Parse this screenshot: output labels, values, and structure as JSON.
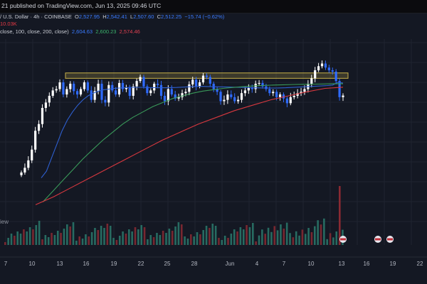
{
  "header": {
    "published": "21 published on TradingView.com, Jun 13, 2025 09:46 UTC"
  },
  "legend": {
    "title": "/ U.S. Dollar · 4h · COINBASE",
    "ohlc_prefix": "O",
    "open": "2,527.95",
    "high_prefix": "H",
    "high": "2,542.41",
    "low_prefix": "L",
    "low": "2,507.60",
    "close_prefix": "C",
    "close": "2,512.25",
    "change": "−15.74 (−0.62%)",
    "volume": "10.03K",
    "ma_line": "close, 100, close, 200, close)",
    "ma_values": [
      "2,604.63",
      "2,600.23",
      "2,574.46"
    ]
  },
  "watermark": "iew",
  "colors": {
    "background": "#141823",
    "candle_up": "#ffffff",
    "candle_down": "#2f6bff",
    "ma_short": "#2e5fcf",
    "ma_mid": "#3a9a5a",
    "ma_long": "#d8383f",
    "resistance_zone": "#c7b04a",
    "vol_up": "#2a7a6c",
    "vol_down": "#8a2a32",
    "grid": "#1f2430"
  },
  "chart_data": {
    "type": "candlestick",
    "title": "",
    "xlabel": "",
    "ylabel": "",
    "x_tick_labels": [
      "7",
      "10",
      "13",
      "16",
      "19",
      "22",
      "25",
      "28",
      "Jun",
      "4",
      "7",
      "10",
      "13",
      "16",
      "19",
      "22"
    ],
    "resistance_zone": [
      2640,
      2680
    ],
    "events_icons": [
      "flag-icon",
      "flag-icon",
      "flag-icon"
    ],
    "grid": true,
    "series": [
      {
        "name": "",
        "path_note": "price",
        "values": [
          1940,
          1975,
          2030,
          2110,
          2250,
          2300,
          2420,
          2460,
          2510,
          2550,
          2560,
          2610,
          2520,
          2560,
          2600,
          2545,
          2520,
          2560,
          2610,
          2550,
          2480,
          2545,
          2600,
          2480,
          2460,
          2590,
          2550,
          2520,
          2605,
          2560,
          2570,
          2510,
          2580,
          2620,
          2650,
          2580,
          2530,
          2550,
          2600,
          2590,
          2510,
          2470,
          2560,
          2520,
          2490,
          2500,
          2530,
          2540,
          2595,
          2630,
          2580,
          2610,
          2660,
          2650,
          2600,
          2560,
          2540,
          2470,
          2480,
          2520,
          2500,
          2470,
          2480,
          2530,
          2550,
          2570,
          2560,
          2600,
          2605,
          2580,
          2560,
          2530,
          2540,
          2500,
          2520,
          2490,
          2455,
          2500,
          2510,
          2530,
          2540,
          2560,
          2600,
          2640,
          2700,
          2730,
          2750,
          2720,
          2700,
          2690,
          2620,
          2500,
          2512
        ]
      },
      {
        "name": "",
        "path_note": "ma_short",
        "values": [
          1900,
          1950,
          2050,
          2150,
          2250,
          2330,
          2390,
          2440,
          2480,
          2510,
          2530,
          2545,
          2555,
          2560,
          2565,
          2568,
          2570,
          2572,
          2573,
          2573,
          2572,
          2571,
          2571,
          2570,
          2570,
          2571,
          2572,
          2574,
          2576,
          2578,
          2580,
          2580,
          2579,
          2578,
          2577,
          2576,
          2575,
          2574,
          2573,
          2572,
          2571,
          2570,
          2569,
          2568,
          2568,
          2568,
          2569,
          2570,
          2572,
          2574,
          2576,
          2578,
          2580,
          2582,
          2584,
          2586,
          2590,
          2610,
          2605
        ]
      },
      {
        "name": "",
        "path_note": "ma_mid",
        "values": [
          1720,
          1800,
          1880,
          1960,
          2040,
          2110,
          2180,
          2240,
          2300,
          2350,
          2390,
          2430,
          2460,
          2490,
          2510,
          2530,
          2545,
          2555,
          2565,
          2572,
          2578,
          2583,
          2587,
          2590,
          2592,
          2594,
          2596,
          2597,
          2598,
          2600,
          2600
        ]
      },
      {
        "name": "",
        "path_note": "ma_long",
        "values": [
          1700,
          1760,
          1830,
          1900,
          1970,
          2040,
          2110,
          2180,
          2240,
          2300,
          2350,
          2400,
          2440,
          2480,
          2510,
          2540,
          2565,
          2574
        ]
      }
    ]
  }
}
